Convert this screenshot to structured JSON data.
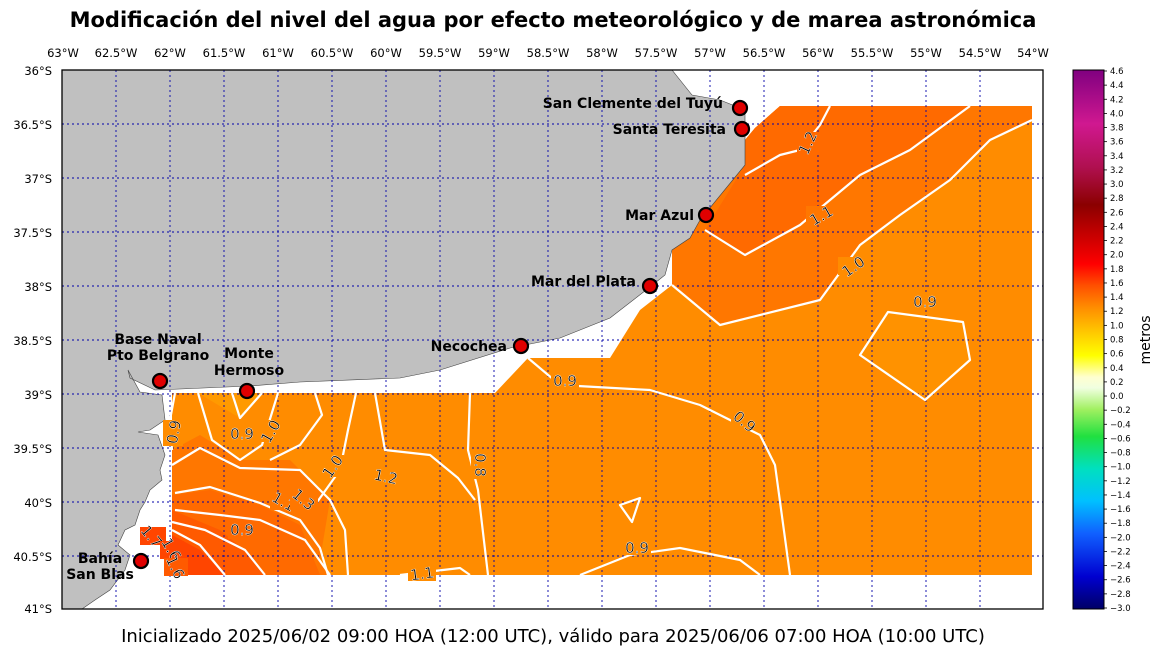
{
  "title": "Modificación del nivel del agua por efecto meteorológico y de marea astronómica",
  "footer": "Inicializado 2025/06/02 09:00 HOA (12:00 UTC), válido para 2025/06/06 07:00 HOA (10:00 UTC)",
  "lon_ticks": [
    "63°W",
    "62.5°W",
    "62°W",
    "61.5°W",
    "61°W",
    "60.5°W",
    "60°W",
    "59.5°W",
    "59°W",
    "58.5°W",
    "58°W",
    "57.5°W",
    "57°W",
    "56.5°W",
    "56°W",
    "55.5°W",
    "55°W",
    "54.5°W",
    "54°W"
  ],
  "lat_ticks": [
    "36°S",
    "36.5°S",
    "37°S",
    "37.5°S",
    "38°S",
    "38.5°S",
    "39°S",
    "39.5°S",
    "40°S",
    "40.5°S",
    "41°S"
  ],
  "colorbar": {
    "label": "metros",
    "ticks": [
      "4.6",
      "4.4",
      "4.2",
      "4.0",
      "3.8",
      "3.6",
      "3.4",
      "3.2",
      "3.0",
      "2.8",
      "2.6",
      "2.4",
      "2.2",
      "2.0",
      "1.8",
      "1.6",
      "1.4",
      "1.2",
      "1.0",
      "0.8",
      "0.6",
      "0.4",
      "0.2",
      "0.0",
      "−0.2",
      "−0.4",
      "−0.6",
      "−0.8",
      "−1.0",
      "−1.2",
      "−1.4",
      "−1.6",
      "−1.8",
      "−2.0",
      "−2.2",
      "−2.4",
      "−2.6",
      "−2.8",
      "−3.0"
    ]
  },
  "stations": [
    {
      "name": "San Clemente del Tuyú"
    },
    {
      "name": "Santa Teresita"
    },
    {
      "name": "Mar Azul"
    },
    {
      "name": "Mar del Plata"
    },
    {
      "name": "Necochea"
    },
    {
      "name": "Base Naval",
      "name2": "Pto Belgrano"
    },
    {
      "name": "Monte",
      "name2": "Hermoso"
    },
    {
      "name": "Bahía",
      "name2": "San Blas"
    }
  ],
  "contour_labels": [
    "1.2",
    "1.1",
    "1.0",
    "0.9",
    "0.9",
    "0.9",
    "0.9",
    "0.8",
    "0.9",
    "1.0",
    "1.0",
    "0.9",
    "1.2",
    "1.1",
    "1.3",
    "0.9",
    "1.1",
    "1.7",
    "1.6",
    "1.6"
  ],
  "colors": {
    "land": "#c0c0c0",
    "field_orange": "#ff8c00",
    "field_dark": "#ff6a00",
    "field_red": "#ff4500",
    "station_fill": "#e00000",
    "grid": "#0000aa"
  }
}
